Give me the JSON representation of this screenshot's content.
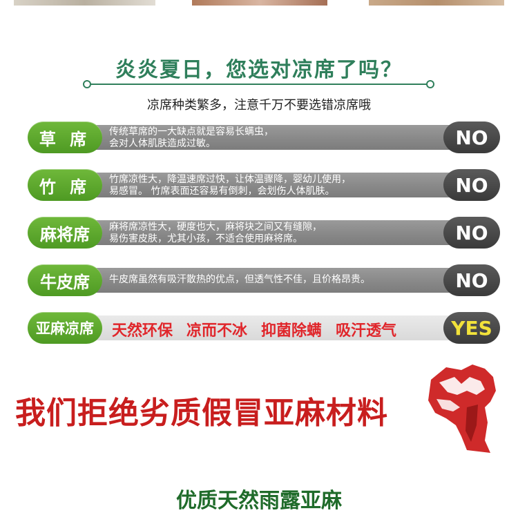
{
  "headline": {
    "title": "炎炎夏日，您选对凉席了吗？",
    "subtitle": "凉席种类繁多，注意千万不要选错凉席哦"
  },
  "rows": [
    {
      "name": "草 席",
      "desc_line1": "传统草席的一大缺点就是容易长螨虫，",
      "desc_line2": "会对人体肌肤造成过敏。",
      "verdict": "NO"
    },
    {
      "name": "竹 席",
      "desc_line1": "竹席凉性大，降温速席过快，让体温骤降，婴幼儿使用，",
      "desc_line2": "易感冒。 竹席表面还容易有倒刺，会划伤人体肌肤。",
      "verdict": "NO"
    },
    {
      "name": "麻将席",
      "desc_line1": "麻将席凉性大，硬度也大，麻将块之间又有缝隙，",
      "desc_line2": "易伤害皮肤，尤其小孩，不适合使用麻将席。",
      "verdict": "NO"
    },
    {
      "name": "牛皮席",
      "desc_line1": "牛皮席虽然有吸汗散热的优点，但透气性不佳，且价格昂贵。",
      "desc_line2": "",
      "verdict": "NO"
    }
  ],
  "linen": {
    "name": "亚麻凉席",
    "features": [
      "天然环保",
      "凉而不冰",
      "抑菌除螨",
      "吸汗透气"
    ],
    "verdict": "YES"
  },
  "reject_text": "我们拒绝劣质假冒亚麻材料",
  "bottom_title": "优质天然雨露亚麻",
  "colors": {
    "green": "#4e9a23",
    "red": "#c81e1e",
    "yes": "#f2e23a"
  }
}
